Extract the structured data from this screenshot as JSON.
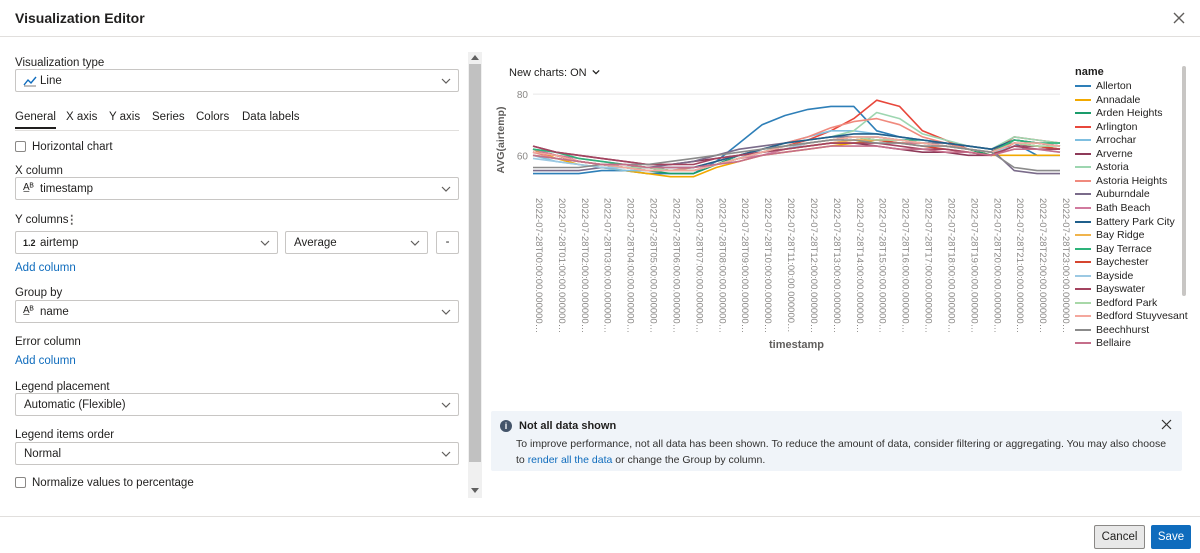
{
  "dialog": {
    "title": "Visualization Editor"
  },
  "left": {
    "viz_type_label": "Visualization type",
    "viz_type_value": "Line",
    "tabs": [
      "General",
      "X axis",
      "Y axis",
      "Series",
      "Colors",
      "Data labels"
    ],
    "horizontal_chart_label": "Horizontal chart",
    "x_column_label": "X column",
    "x_column_value": "timestamp",
    "y_columns_label": "Y columns",
    "y_column_value": "airtemp",
    "y_column_type": "1.2",
    "y_agg_value": "Average",
    "remove_btn": "-",
    "add_column": "Add column",
    "group_by_label": "Group by",
    "group_by_value": "name",
    "error_column_label": "Error column",
    "add_column_2": "Add column",
    "legend_placement_label": "Legend placement",
    "legend_placement_value": "Automatic (Flexible)",
    "legend_order_label": "Legend items order",
    "legend_order_value": "Normal",
    "normalize_label": "Normalize values to percentage"
  },
  "right": {
    "new_charts": "New charts: ON"
  },
  "info": {
    "title": "Not all data shown",
    "body_pre": "To improve performance, not all data has been shown. To reduce the amount of data, consider filtering or aggregating. You may also choose to ",
    "body_link": "render all the data",
    "body_post": " or change the Group by column."
  },
  "footer": {
    "cancel": "Cancel",
    "save": "Save"
  },
  "icons": {
    "close": "close-icon",
    "chevron": "chevron-down-icon",
    "line": "line-chart-icon",
    "string": "string-type-icon",
    "number": "number-type-icon",
    "info": "info-icon"
  },
  "chart_data": {
    "type": "line",
    "xlabel": "timestamp",
    "ylabel": "AVG(airtemp)",
    "ylim": [
      48,
      82
    ],
    "yticks": [
      60,
      80
    ],
    "legend_title": "name",
    "legend_placement": "right",
    "categories": [
      "2022-07-28T00:00:00.000000…",
      "2022-07-28T01:00:00.000000…",
      "2022-07-28T02:00:00.000000…",
      "2022-07-28T03:00:00.000000…",
      "2022-07-28T04:00:00.000000…",
      "2022-07-28T05:00:00.000000…",
      "2022-07-28T06:00:00.000000…",
      "2022-07-28T07:00:00.000000…",
      "2022-07-28T08:00:00.000000…",
      "2022-07-28T09:00:00.000000…",
      "2022-07-28T10:00:00.000000…",
      "2022-07-28T11:00:00.000000…",
      "2022-07-28T12:00:00.000000…",
      "2022-07-28T13:00:00.000000…",
      "2022-07-28T14:00:00.000000…",
      "2022-07-28T15:00:00.000000…",
      "2022-07-28T16:00:00.000000…",
      "2022-07-28T17:00:00.000000…",
      "2022-07-28T18:00:00.000000…",
      "2022-07-28T19:00:00.000000…",
      "2022-07-28T20:00:00.000000…",
      "2022-07-28T21:00:00.000000…",
      "2022-07-28T22:00:00.000000…",
      "2022-07-28T23:00:00.000000…"
    ],
    "series": [
      {
        "name": "Allerton",
        "color": "#2e7fb8",
        "values": [
          54,
          54,
          54,
          55,
          55,
          54,
          54,
          54,
          58,
          64,
          70,
          73,
          75,
          76,
          76,
          68,
          66,
          65,
          64,
          63,
          62,
          64,
          60,
          60
        ]
      },
      {
        "name": "Annadale",
        "color": "#f2a900",
        "values": [
          62,
          59,
          57,
          56,
          55,
          54,
          53,
          53,
          56,
          58,
          60,
          61,
          62,
          63,
          64,
          65,
          64,
          64,
          63,
          62,
          60,
          60,
          60,
          60
        ]
      },
      {
        "name": "Arden Heights",
        "color": "#1a9c6b",
        "values": [
          62,
          60,
          58,
          57,
          56,
          55,
          54,
          54,
          57,
          60,
          62,
          63,
          64,
          65,
          66,
          66,
          65,
          65,
          64,
          62,
          60,
          65,
          64,
          63
        ]
      },
      {
        "name": "Arlington",
        "color": "#e8473b",
        "values": [
          61,
          60,
          58,
          57,
          56,
          55,
          55,
          55,
          57,
          59,
          61,
          63,
          65,
          68,
          72,
          78,
          76,
          68,
          65,
          62,
          61,
          66,
          65,
          64
        ]
      },
      {
        "name": "Arrochar",
        "color": "#7fbfe0",
        "values": [
          60,
          58,
          57,
          56,
          55,
          55,
          55,
          55,
          57,
          59,
          62,
          64,
          66,
          68,
          68,
          67,
          66,
          65,
          64,
          62,
          61,
          64,
          63,
          62
        ]
      },
      {
        "name": "Arverne",
        "color": "#8e3a59",
        "values": [
          63,
          61,
          60,
          59,
          58,
          57,
          57,
          58,
          59,
          60,
          61,
          62,
          63,
          64,
          64,
          63,
          62,
          61,
          61,
          60,
          60,
          63,
          63,
          62
        ]
      },
      {
        "name": "Astoria",
        "color": "#9dd6b0",
        "values": [
          62,
          60,
          58,
          57,
          56,
          55,
          55,
          56,
          58,
          60,
          62,
          64,
          65,
          66,
          68,
          74,
          72,
          67,
          65,
          63,
          62,
          66,
          65,
          64
        ]
      },
      {
        "name": "Astoria Heights",
        "color": "#f08a7e",
        "values": [
          61,
          59,
          58,
          57,
          56,
          56,
          55,
          56,
          58,
          60,
          62,
          64,
          66,
          69,
          71,
          72,
          70,
          66,
          64,
          62,
          61,
          65,
          64,
          63
        ]
      },
      {
        "name": "Auburndale",
        "color": "#7a6b8a",
        "values": [
          55,
          55,
          55,
          56,
          56,
          56,
          57,
          58,
          60,
          62,
          63,
          64,
          65,
          66,
          66,
          65,
          65,
          64,
          64,
          63,
          62,
          55,
          54,
          54
        ]
      },
      {
        "name": "Bath Beach",
        "color": "#d17a9e",
        "values": [
          62,
          60,
          59,
          58,
          57,
          56,
          56,
          56,
          57,
          59,
          60,
          62,
          63,
          64,
          65,
          65,
          64,
          64,
          63,
          62,
          61,
          64,
          63,
          62
        ]
      },
      {
        "name": "Battery Park City",
        "color": "#1f5f8b",
        "values": [
          61,
          60,
          58,
          57,
          56,
          56,
          56,
          56,
          58,
          60,
          62,
          64,
          65,
          66,
          67,
          67,
          66,
          65,
          64,
          63,
          62,
          65,
          64,
          63
        ]
      },
      {
        "name": "Bay Ridge",
        "color": "#f0b44c",
        "values": [
          60,
          59,
          58,
          57,
          56,
          55,
          55,
          55,
          57,
          59,
          61,
          62,
          63,
          64,
          65,
          65,
          65,
          64,
          63,
          62,
          61,
          64,
          63,
          62
        ]
      },
      {
        "name": "Bay Terrace",
        "color": "#2db37a",
        "values": [
          62,
          61,
          59,
          58,
          57,
          56,
          55,
          55,
          57,
          59,
          61,
          63,
          64,
          65,
          66,
          66,
          65,
          64,
          63,
          62,
          61,
          65,
          64,
          64
        ]
      },
      {
        "name": "Baychester",
        "color": "#d6452f",
        "values": [
          61,
          60,
          58,
          57,
          57,
          56,
          55,
          55,
          57,
          59,
          61,
          62,
          64,
          65,
          66,
          65,
          64,
          63,
          62,
          61,
          60,
          64,
          63,
          62
        ]
      },
      {
        "name": "Bayside",
        "color": "#9cc9e3",
        "values": [
          59,
          58,
          57,
          56,
          56,
          55,
          55,
          55,
          57,
          59,
          61,
          62,
          64,
          65,
          66,
          66,
          65,
          64,
          63,
          62,
          61,
          63,
          62,
          61
        ]
      },
      {
        "name": "Bayswater",
        "color": "#a3435f",
        "values": [
          63,
          61,
          60,
          59,
          58,
          57,
          57,
          57,
          59,
          60,
          61,
          62,
          63,
          64,
          64,
          64,
          63,
          62,
          62,
          61,
          60,
          63,
          62,
          62
        ]
      },
      {
        "name": "Bedford Park",
        "color": "#a8d8a8",
        "values": [
          60,
          59,
          58,
          57,
          56,
          56,
          55,
          55,
          57,
          59,
          61,
          63,
          64,
          65,
          66,
          65,
          65,
          64,
          63,
          62,
          61,
          64,
          63,
          63
        ]
      },
      {
        "name": "Bedford Stuyvesant",
        "color": "#f4a79d",
        "values": [
          61,
          60,
          58,
          57,
          56,
          55,
          55,
          55,
          57,
          59,
          61,
          63,
          64,
          65,
          66,
          66,
          65,
          64,
          63,
          62,
          61,
          64,
          64,
          63
        ]
      },
      {
        "name": "Beechhurst",
        "color": "#8b8b8b",
        "values": [
          56,
          56,
          56,
          57,
          57,
          57,
          58,
          59,
          60,
          61,
          62,
          63,
          64,
          65,
          65,
          64,
          64,
          63,
          63,
          62,
          61,
          56,
          55,
          55
        ]
      },
      {
        "name": "Bellaire",
        "color": "#c56e8a",
        "values": [
          60,
          59,
          58,
          57,
          57,
          56,
          56,
          56,
          57,
          58,
          60,
          61,
          62,
          63,
          63,
          63,
          62,
          62,
          61,
          61,
          60,
          62,
          62,
          61
        ]
      }
    ]
  }
}
